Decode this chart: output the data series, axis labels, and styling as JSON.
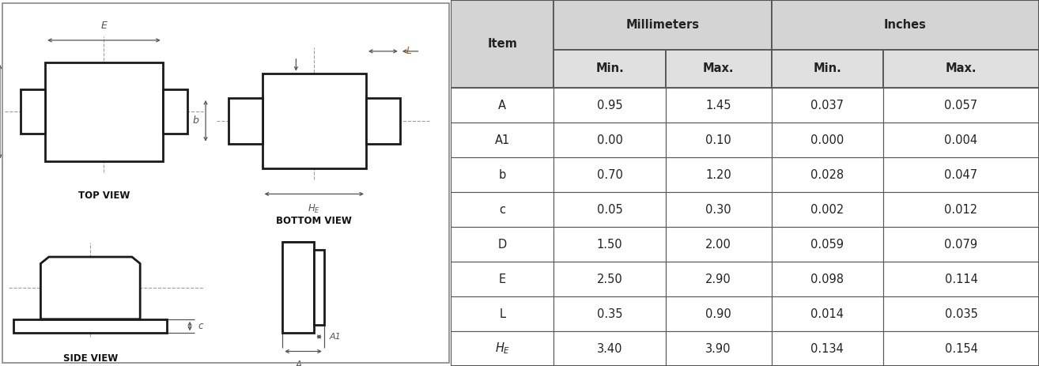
{
  "table": {
    "rows": [
      [
        "A",
        "0.95",
        "1.45",
        "0.037",
        "0.057"
      ],
      [
        "A1",
        "0.00",
        "0.10",
        "0.000",
        "0.004"
      ],
      [
        "b",
        "0.70",
        "1.20",
        "0.028",
        "0.047"
      ],
      [
        "c",
        "0.05",
        "0.30",
        "0.002",
        "0.012"
      ],
      [
        "D",
        "1.50",
        "2.00",
        "0.059",
        "0.079"
      ],
      [
        "E",
        "2.50",
        "2.90",
        "0.098",
        "0.114"
      ],
      [
        "L",
        "0.35",
        "0.90",
        "0.014",
        "0.035"
      ],
      [
        "HE",
        "3.40",
        "3.90",
        "0.134",
        "0.154"
      ]
    ],
    "header_bg": "#d4d4d4",
    "subheader_bg": "#e0e0e0",
    "border_color": "#555555",
    "text_color": "#222222"
  },
  "drawing": {
    "line_color": "#1a1a1a",
    "dim_color": "#555555",
    "dashed_color": "#9999bb",
    "label_color_orange": "#b36000",
    "bg_color": "#ffffff"
  }
}
